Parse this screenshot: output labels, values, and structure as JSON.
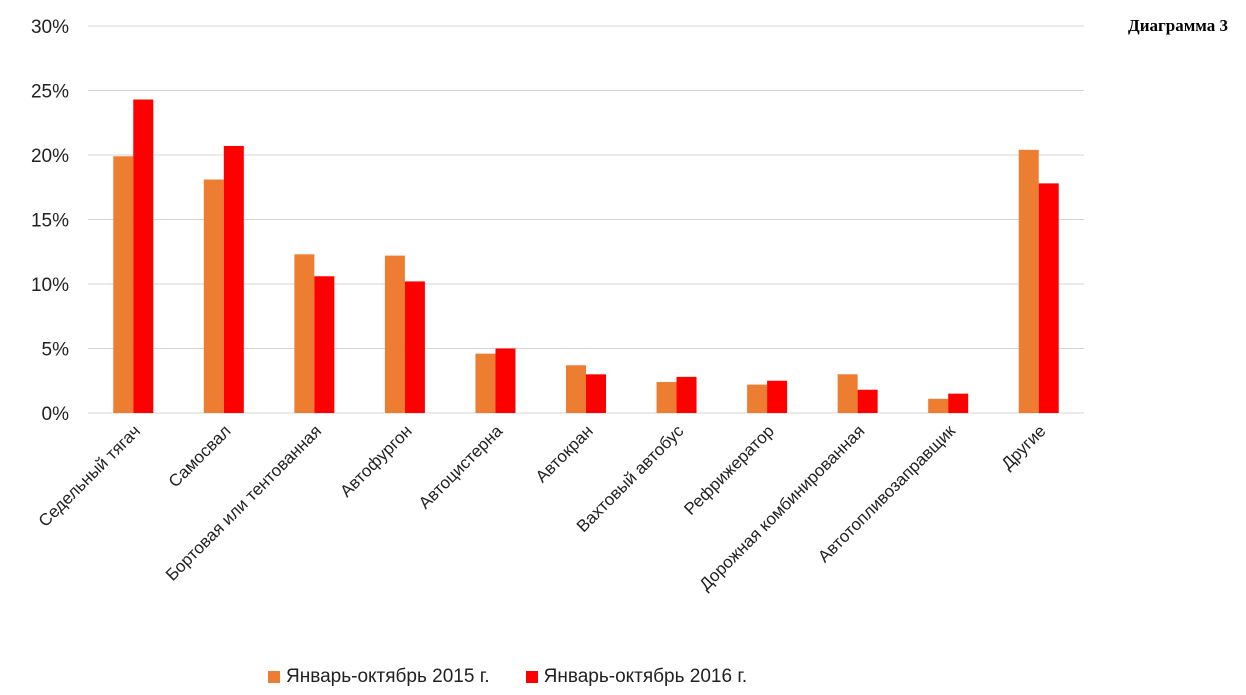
{
  "heading": "Диаграмма 3",
  "colors": {
    "s2015": "#ED7D31",
    "s2016": "#FF0000",
    "grid": "#d4d4d4"
  },
  "chart_data": {
    "type": "bar",
    "categories": [
      "Седельный тягач",
      "Самосвал",
      "Бортовая или тентованная",
      "Автофургон",
      "Автоцистерна",
      "Автокран",
      "Вахтовый автобус",
      "Рефрижератор",
      "Дорожная комбинированная",
      "Автотопливозаправщик",
      "Другие"
    ],
    "series": [
      {
        "name": "Январь-октябрь 2015 г.",
        "values": [
          19.9,
          18.1,
          12.3,
          12.2,
          4.6,
          3.7,
          2.4,
          2.2,
          3.0,
          1.1,
          20.4
        ]
      },
      {
        "name": "Январь-октябрь 2016 г.",
        "values": [
          24.3,
          20.7,
          10.6,
          10.2,
          5.0,
          3.0,
          2.8,
          2.5,
          1.8,
          1.5,
          17.8
        ]
      }
    ],
    "y_ticks": [
      "0%",
      "5%",
      "10%",
      "15%",
      "20%",
      "25%",
      "30%"
    ],
    "ylim": [
      0,
      30
    ],
    "grid": true,
    "legend_position": "bottom"
  }
}
